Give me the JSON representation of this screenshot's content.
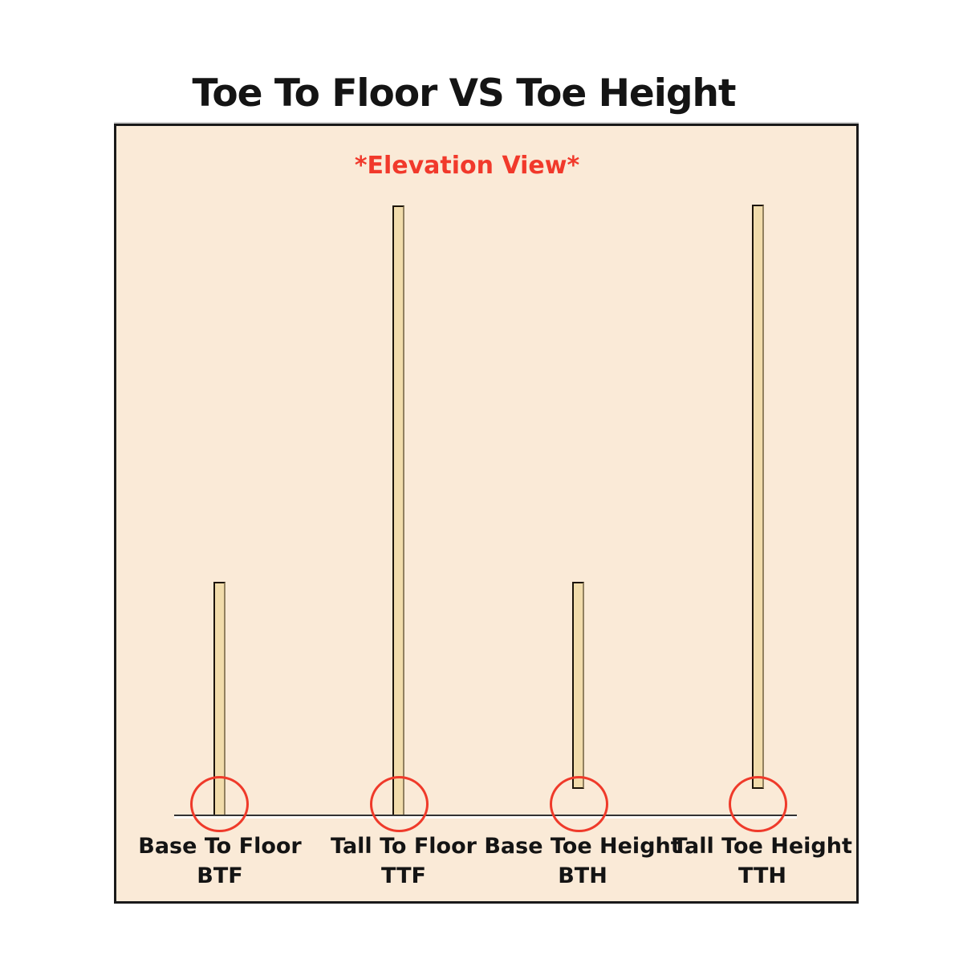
{
  "title": "Toe To Floor VS Toe Height",
  "panel": {
    "subtitle": "*Elevation View*"
  },
  "columns": [
    {
      "name": "Base To Floor",
      "abbr": "BTF",
      "bar": "short",
      "reaches_floor": true
    },
    {
      "name": "Tall To Floor",
      "abbr": "TTF",
      "bar": "tall",
      "reaches_floor": true
    },
    {
      "name": "Base Toe Height",
      "abbr": "BTH",
      "bar": "short",
      "reaches_floor": false
    },
    {
      "name": "Tall Toe Height",
      "abbr": "TTH",
      "bar": "tall",
      "reaches_floor": false
    }
  ],
  "colors": {
    "accent_red": "#f1392b",
    "panel_background": "#faead7",
    "bar_fill": "#f1dcab",
    "outline": "#1a1a1a",
    "floor_line": "#333333"
  }
}
